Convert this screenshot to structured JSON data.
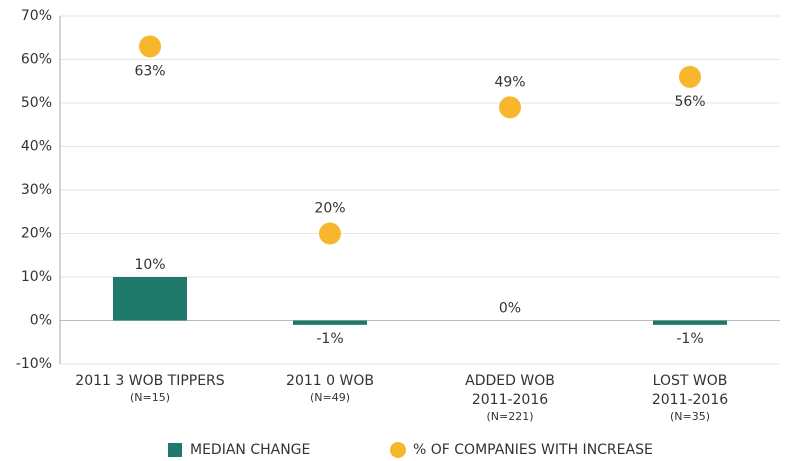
{
  "chart_data": {
    "type": "bar",
    "categories": [
      [
        "2011 3 WOB TIPPERS",
        "(N=15)"
      ],
      [
        "2011 0 WOB",
        "(N=49)"
      ],
      [
        "ADDED WOB",
        "2011-2016",
        "(N=221)"
      ],
      [
        "LOST WOB",
        "2011-2016",
        "(N=35)"
      ]
    ],
    "series": [
      {
        "name": "MEDIAN CHANGE",
        "type": "bar",
        "color": "#1f7a6c",
        "values": [
          10,
          -1,
          0,
          -1
        ],
        "value_labels": [
          "10%",
          "-1%",
          "0%",
          "-1%"
        ]
      },
      {
        "name": "% OF COMPANIES WITH INCREASE",
        "type": "scatter",
        "color": "#f8b62d",
        "values": [
          63,
          20,
          49,
          56
        ],
        "value_labels": [
          "63%",
          "20%",
          "49%",
          "56%"
        ]
      }
    ],
    "ylim": [
      -10,
      70
    ],
    "yticks": [
      {
        "value": -10,
        "label": "-10%"
      },
      {
        "value": 0,
        "label": "0%"
      },
      {
        "value": 10,
        "label": "10%"
      },
      {
        "value": 20,
        "label": "20%"
      },
      {
        "value": 30,
        "label": "30%"
      },
      {
        "value": 40,
        "label": "40%"
      },
      {
        "value": 50,
        "label": "50%"
      },
      {
        "value": 60,
        "label": "60%"
      },
      {
        "value": 70,
        "label": "70%"
      }
    ],
    "grid": true,
    "legend": "bottom"
  }
}
